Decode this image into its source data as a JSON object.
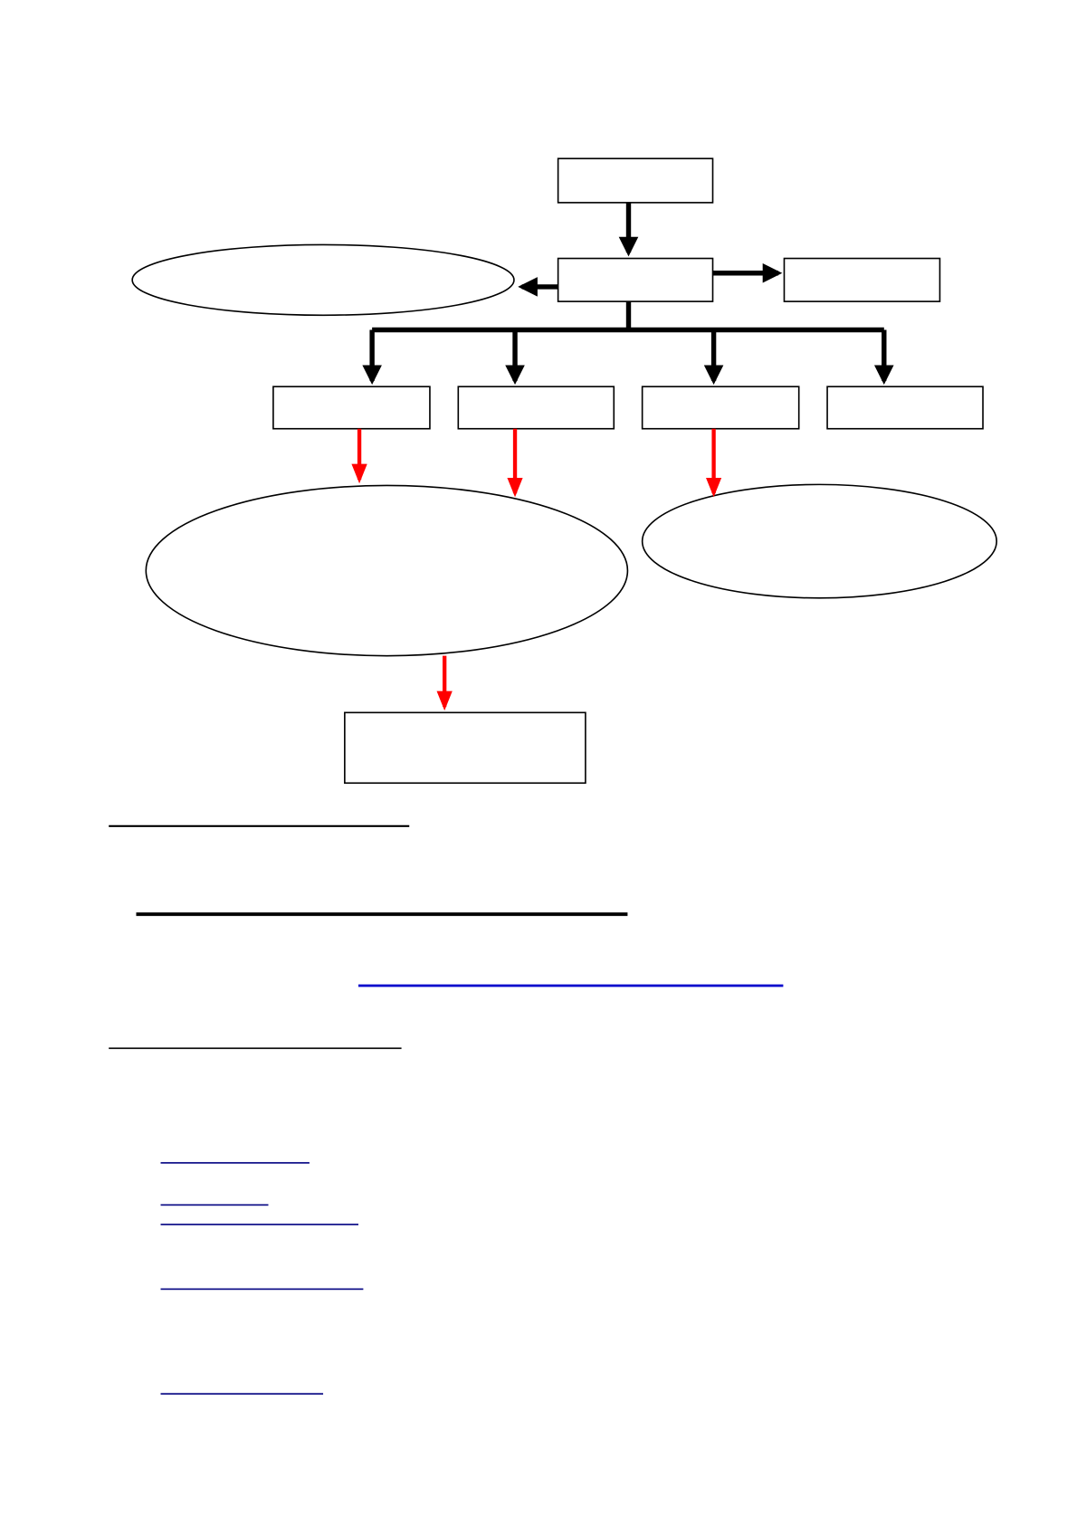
{
  "colors": {
    "primary_arrow": "#000000",
    "secondary_arrow": "#ff0000",
    "link_underline": "#0000cc",
    "link_underline_small": "#000080",
    "node_fill": "#ffffff",
    "node_stroke": "#000000"
  },
  "diagram": {
    "nodes": [
      {
        "id": "top",
        "shape": "rect",
        "label": ""
      },
      {
        "id": "center",
        "shape": "rect",
        "label": ""
      },
      {
        "id": "right",
        "shape": "rect",
        "label": ""
      },
      {
        "id": "left-oval",
        "shape": "ellipse",
        "label": ""
      },
      {
        "id": "child-1",
        "shape": "rect",
        "label": ""
      },
      {
        "id": "child-2",
        "shape": "rect",
        "label": ""
      },
      {
        "id": "child-3",
        "shape": "rect",
        "label": ""
      },
      {
        "id": "child-4",
        "shape": "rect",
        "label": ""
      },
      {
        "id": "big-oval",
        "shape": "ellipse",
        "label": ""
      },
      {
        "id": "right-oval",
        "shape": "ellipse",
        "label": ""
      },
      {
        "id": "bottom",
        "shape": "rect",
        "label": ""
      }
    ],
    "edges": [
      {
        "from": "top",
        "to": "center",
        "color": "black"
      },
      {
        "from": "center",
        "to": "left-oval",
        "color": "black"
      },
      {
        "from": "center",
        "to": "right",
        "color": "black"
      },
      {
        "from": "center",
        "to": "child-1",
        "color": "black"
      },
      {
        "from": "center",
        "to": "child-2",
        "color": "black"
      },
      {
        "from": "center",
        "to": "child-3",
        "color": "black"
      },
      {
        "from": "center",
        "to": "child-4",
        "color": "black"
      },
      {
        "from": "child-1",
        "to": "big-oval",
        "color": "red"
      },
      {
        "from": "child-2",
        "to": "big-oval",
        "color": "red"
      },
      {
        "from": "child-3",
        "to": "right-oval",
        "color": "red"
      },
      {
        "from": "big-oval",
        "to": "bottom",
        "color": "red"
      }
    ]
  }
}
